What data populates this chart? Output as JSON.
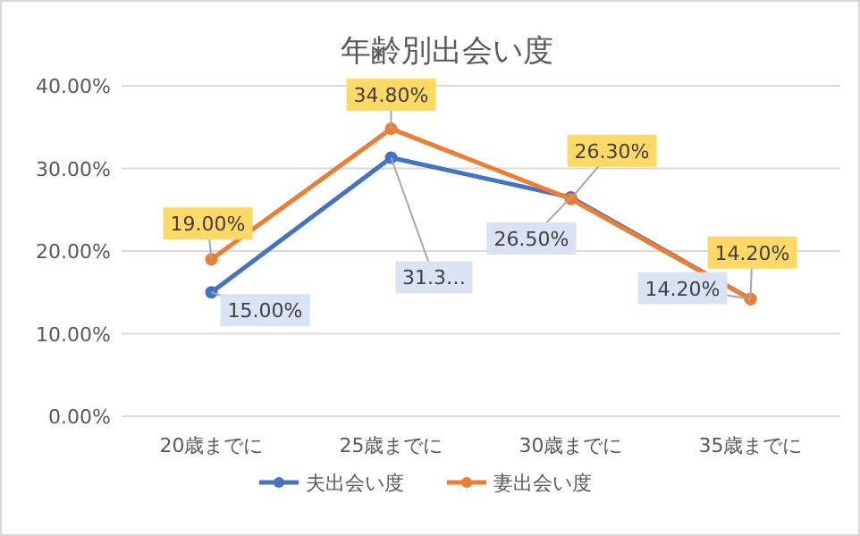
{
  "chart_data": {
    "type": "line",
    "title": "年齢別出会い度",
    "categories": [
      "20歳までに",
      "25歳までに",
      "30歳までに",
      "35歳までに"
    ],
    "series": [
      {
        "name": "夫出会い度",
        "color": "#4472c4",
        "values": [
          15.0,
          31.3,
          26.5,
          14.2
        ],
        "value_labels": [
          "15.00%",
          "31.3…",
          "26.50%",
          "14.20%"
        ]
      },
      {
        "name": "妻出会い度",
        "color": "#ed7d31",
        "values": [
          19.0,
          34.8,
          26.3,
          14.2
        ],
        "value_labels": [
          "19.00%",
          "34.80%",
          "26.30%",
          "14.20%"
        ]
      }
    ],
    "ylim": [
      0,
      40
    ],
    "yticks": [
      {
        "value": 0,
        "label": "0.00%"
      },
      {
        "value": 10,
        "label": "10.00%"
      },
      {
        "value": 20,
        "label": "20.00%"
      },
      {
        "value": 30,
        "label": "30.00%"
      },
      {
        "value": 40,
        "label": "40.00%"
      }
    ],
    "grid": "y",
    "legend": "bottom",
    "marker": "circle",
    "line_style": "solid"
  }
}
